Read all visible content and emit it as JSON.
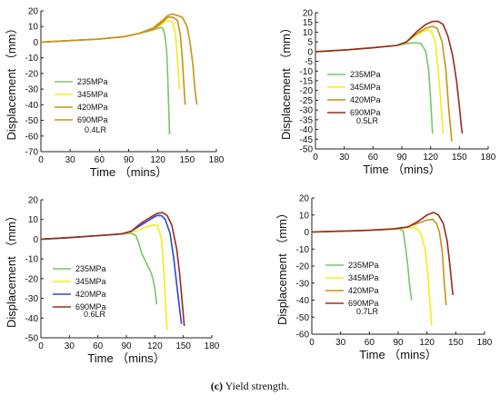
{
  "caption": {
    "label": "(c)",
    "text": "Yield strength."
  },
  "colors": {
    "235MPa": "#77c56b",
    "345MPa": "#f3ee16",
    "420MPa": "#c99118",
    "420MPa_blue": "#2b48d8",
    "690MPa": "#9a2b1e"
  },
  "chart_data": [
    {
      "type": "line",
      "annotation": "0.4LR",
      "xlabel": "Time （mins）",
      "ylabel": "Displacement （mm）",
      "xlim": [
        0,
        180
      ],
      "ylim": [
        -70,
        20
      ],
      "xticks": [
        0,
        30,
        60,
        90,
        120,
        150,
        180
      ],
      "yticks": [
        20,
        10,
        0,
        -10,
        -20,
        -30,
        -40,
        -50,
        -60,
        -70
      ],
      "series": [
        {
          "name": "235MPa",
          "color": "#77c56b",
          "x": [
            0,
            30,
            60,
            85,
            100,
            110,
            118,
            123,
            125,
            127,
            129,
            130,
            131,
            132
          ],
          "y": [
            0,
            1,
            2,
            3.5,
            5.5,
            7,
            8.5,
            9.5,
            9,
            5,
            -5,
            -20,
            -40,
            -59
          ]
        },
        {
          "name": "345MPa",
          "color": "#f3ee16",
          "x": [
            0,
            30,
            60,
            85,
            100,
            115,
            125,
            130,
            135,
            138,
            140,
            142
          ],
          "y": [
            0,
            1,
            2,
            3.5,
            5.5,
            8,
            12,
            14,
            13,
            5,
            -10,
            -30
          ]
        },
        {
          "name": "420MPa",
          "color": "#c99118",
          "x": [
            0,
            30,
            60,
            85,
            100,
            115,
            125,
            130,
            135,
            140,
            143,
            145,
            147,
            148
          ],
          "y": [
            0,
            1,
            2,
            3.5,
            5.5,
            8,
            13,
            16,
            16,
            14,
            5,
            -10,
            -30,
            -40
          ]
        },
        {
          "name": "690MPa",
          "color": "#c99118",
          "x": [
            0,
            30,
            60,
            85,
            100,
            115,
            125,
            130,
            135,
            145,
            150,
            153,
            156,
            158,
            160
          ],
          "y": [
            0,
            1,
            2,
            3.5,
            5.5,
            9,
            14,
            17,
            18,
            16,
            10,
            0,
            -15,
            -30,
            -40
          ]
        }
      ]
    },
    {
      "type": "line",
      "annotation": "0.5LR",
      "xlabel": "Time （mins）",
      "ylabel": "Displacement （mm）",
      "xlim": [
        0,
        180
      ],
      "ylim": [
        -50,
        20
      ],
      "xticks": [
        0,
        30,
        60,
        90,
        120,
        150,
        180
      ],
      "yticks": [
        20,
        15,
        10,
        5,
        0,
        -5,
        -10,
        -15,
        -20,
        -25,
        -30,
        -35,
        -40,
        -45,
        -50
      ],
      "series": [
        {
          "name": "235MPa",
          "color": "#77c56b",
          "x": [
            0,
            30,
            60,
            85,
            95,
            105,
            110,
            115,
            118,
            120,
            122
          ],
          "y": [
            0,
            0.8,
            2,
            3.2,
            4.2,
            4.6,
            4.2,
            0,
            -10,
            -25,
            -42
          ]
        },
        {
          "name": "345MPa",
          "color": "#f3ee16",
          "x": [
            0,
            30,
            60,
            85,
            95,
            105,
            115,
            120,
            125,
            128,
            131,
            133
          ],
          "y": [
            0,
            0.8,
            2,
            3.2,
            5,
            8.5,
            11,
            11,
            5,
            -10,
            -28,
            -42
          ]
        },
        {
          "name": "420MPa",
          "color": "#c99118",
          "x": [
            0,
            30,
            60,
            85,
            95,
            105,
            115,
            122,
            127,
            132,
            136,
            139,
            141,
            142
          ],
          "y": [
            0,
            0.8,
            2,
            3.2,
            5,
            9,
            12,
            13,
            12,
            5,
            -10,
            -30,
            -40,
            -46
          ]
        },
        {
          "name": "690MPa",
          "color": "#9a2b1e",
          "x": [
            0,
            30,
            60,
            85,
            95,
            105,
            115,
            122,
            128,
            133,
            138,
            143,
            147,
            150,
            152,
            153
          ],
          "y": [
            0,
            0.8,
            2,
            3.2,
            5,
            10,
            14,
            15.5,
            15.5,
            14,
            8,
            -2,
            -15,
            -28,
            -38,
            -42
          ]
        }
      ]
    },
    {
      "type": "line",
      "annotation": "0.6LR",
      "xlabel": "Time （mins）",
      "ylabel": "Displacement （mm）",
      "xlim": [
        0,
        180
      ],
      "ylim": [
        -50,
        20
      ],
      "xticks": [
        0,
        30,
        60,
        90,
        120,
        150,
        180
      ],
      "yticks": [
        20,
        10,
        0,
        -10,
        -20,
        -30,
        -40,
        -50
      ],
      "series": [
        {
          "name": "235MPa",
          "color": "#77c56b",
          "x": [
            0,
            30,
            60,
            85,
            95,
            100,
            103,
            106,
            110,
            113,
            116,
            118,
            120,
            122
          ],
          "y": [
            0,
            0.8,
            1.8,
            2.7,
            3,
            2,
            -2,
            -7,
            -11,
            -14,
            -17,
            -20,
            -25,
            -33
          ]
        },
        {
          "name": "345MPa",
          "color": "#f3ee16",
          "x": [
            0,
            30,
            60,
            85,
            100,
            110,
            118,
            123,
            127,
            130,
            131.5,
            133
          ],
          "y": [
            0,
            0.8,
            1.8,
            2.7,
            4,
            6,
            7.2,
            7,
            0,
            -20,
            -35,
            -46
          ]
        },
        {
          "name": "420MPa",
          "color": "#2b48d8",
          "x": [
            0,
            30,
            60,
            85,
            95,
            105,
            115,
            122,
            127,
            131,
            136,
            140,
            143,
            146,
            148
          ],
          "y": [
            0,
            0.8,
            1.8,
            2.7,
            4,
            7,
            10,
            12,
            12,
            10,
            3,
            -10,
            -23,
            -35,
            -43
          ]
        },
        {
          "name": "690MPa",
          "color": "#9a2b1e",
          "x": [
            0,
            30,
            60,
            85,
            95,
            105,
            115,
            122,
            128,
            133,
            138,
            143,
            146,
            149,
            151
          ],
          "y": [
            0,
            0.8,
            1.8,
            2.7,
            4,
            8,
            11,
            13,
            13.5,
            12,
            7,
            -5,
            -17,
            -33,
            -44
          ]
        }
      ]
    },
    {
      "type": "line",
      "annotation": "0.7LR",
      "xlabel": "Time （mins）",
      "ylabel": "Displacement （mm）",
      "xlim": [
        0,
        180
      ],
      "ylim": [
        -60,
        20
      ],
      "xticks": [
        0,
        30,
        60,
        90,
        120,
        150,
        180
      ],
      "yticks": [
        20,
        10,
        0,
        -10,
        -20,
        -30,
        -40,
        -50,
        -60
      ],
      "series": [
        {
          "name": "235MPa",
          "color": "#77c56b",
          "x": [
            0,
            30,
            60,
            80,
            90,
            95,
            98,
            100,
            102,
            104
          ],
          "y": [
            0,
            0.5,
            1,
            1.5,
            1.8,
            1,
            -10,
            -20,
            -32,
            -40
          ]
        },
        {
          "name": "345MPa",
          "color": "#f3ee16",
          "x": [
            0,
            30,
            60,
            85,
            100,
            108,
            113,
            118,
            121,
            123,
            125
          ],
          "y": [
            0,
            0.5,
            1,
            1.8,
            2.5,
            2.5,
            0,
            -10,
            -25,
            -40,
            -55
          ]
        },
        {
          "name": "420MPa",
          "color": "#c99118",
          "x": [
            0,
            30,
            60,
            85,
            100,
            110,
            120,
            126,
            130,
            133,
            136,
            138,
            140
          ],
          "y": [
            0,
            0.5,
            1,
            1.8,
            3,
            5,
            7,
            7.5,
            5,
            0,
            -12,
            -30,
            -43
          ]
        },
        {
          "name": "690MPa",
          "color": "#9a2b1e",
          "x": [
            0,
            30,
            60,
            85,
            100,
            110,
            120,
            127,
            132,
            137,
            141,
            144,
            147
          ],
          "y": [
            0,
            0.5,
            1,
            1.8,
            3,
            6,
            10,
            11.5,
            10,
            5,
            -5,
            -20,
            -37
          ]
        }
      ]
    }
  ]
}
